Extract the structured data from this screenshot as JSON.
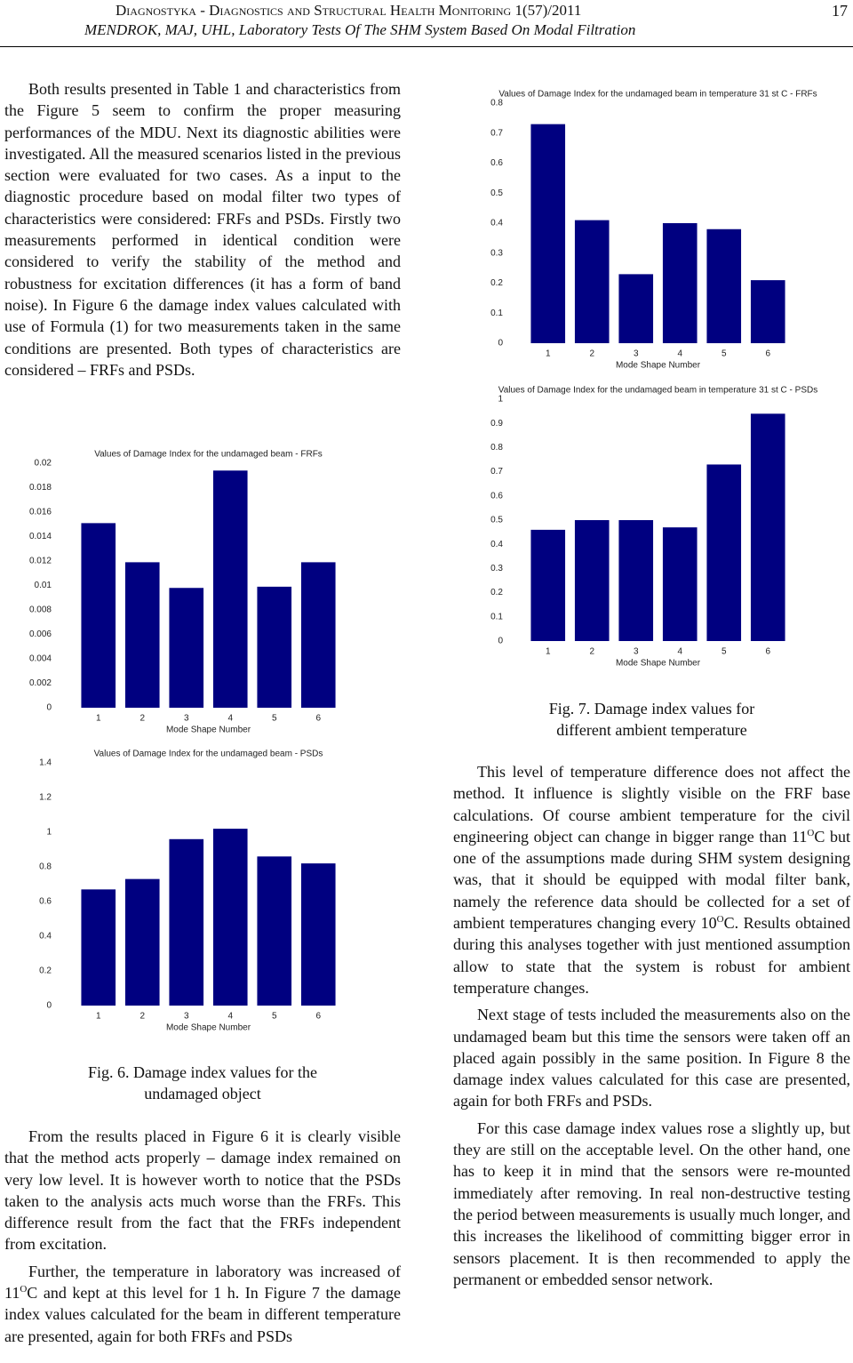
{
  "header": {
    "journal": "Diagnostyka - Diagnostics and Structural Health Monitoring 1(57)/2011",
    "page": "17",
    "authors": "MENDROK, MAJ, UHL, Laboratory Tests Of The SHM System Based On Modal Filtration"
  },
  "left": {
    "intro": [
      [
        {
          "text": "Both results presented in Table 1 and characteristics from the Figure 5 seem to confirm the proper measuring performances of the MDU. Next its diagnostic abilities were investigated. All the measured scenarios listed in the previous section were evaluated for two cases. As a input to the diagnostic procedure based on modal filter two types of characteristics were considered: FRFs and PSDs. Firstly two measurements performed in identical condition were considered to verify the stability of the method and robustness for excitation differences (it has a form of band noise). In Figure 6 the damage index values calculated with use of Formula (1) for two measurements taken in the same conditions are presented. Both types of characteristics are considered – FRFs and PSDs."
        }
      ]
    ],
    "caption": "Fig. 6. Damage index values for the undamaged object",
    "paragraphs": [
      [
        {
          "text": "From the results placed in Figure 6 it is clearly visible that the method acts properly – damage index remained on very low level. It is however worth to notice that the PSDs taken to the analysis acts much worse than the FRFs. This difference result from the fact that the FRFs independent from excitation."
        }
      ],
      [
        {
          "text": "Further, the temperature in laboratory was increased of 11"
        },
        {
          "text": "O",
          "sup": true
        },
        {
          "text": "C and kept at this level for 1 h. In Figure 7 the damage index values calculated for the beam in different temperature are presented, again for both FRFs and PSDs"
        }
      ]
    ]
  },
  "right": {
    "caption": "Fig. 7. Damage index values for different ambient temperature",
    "paragraphs": [
      [
        {
          "text": "This level of temperature difference does not affect the method. It influence is slightly visible on the FRF base calculations. Of course ambient temperature for the civil engineering object can change in bigger range than 11"
        },
        {
          "text": "O",
          "sup": true
        },
        {
          "text": "C but one of the assumptions made during SHM system designing was, that it should be equipped with modal filter bank, namely the reference data should be collected for a set of ambient temperatures changing every 10"
        },
        {
          "text": "O",
          "sup": true
        },
        {
          "text": "C. Results obtained during this analyses together with just mentioned assumption allow to state that the system is robust for ambient temperature changes."
        }
      ],
      [
        {
          "text": "Next stage of tests included the measurements also on the undamaged beam but this time the sensors were taken off an placed again possibly in the same position. In Figure 8 the damage index values calculated for this case are presented, again for both FRFs and PSDs."
        }
      ],
      [
        {
          "text": "For this case damage index values rose a slightly up, but they are still on the acceptable level. On the other hand, one has to keep it in mind that the sensors were re-mounted immediately after removing. In real non-destructive testing the period between measurements is usually much longer, and this increases the likelihood of committing bigger error in sensors placement. It is then recommended to apply the permanent or embedded sensor network."
        }
      ]
    ]
  },
  "chart_data": [
    {
      "type": "bar",
      "title": "Values of Damage Index for the undamaged beam - FRFs",
      "xlabel": "Mode Shape Number",
      "categories": [
        "1",
        "2",
        "3",
        "4",
        "5",
        "6"
      ],
      "values": [
        0.0151,
        0.0119,
        0.0098,
        0.0194,
        0.0099,
        0.0119
      ],
      "color": "#000080",
      "ylim": [
        0,
        0.02
      ],
      "yticks": [
        0,
        0.002,
        0.004,
        0.006,
        0.008,
        0.01,
        0.012,
        0.014,
        0.016,
        0.018,
        0.02
      ]
    },
    {
      "type": "bar",
      "title": "Values of Damage Index for the undamaged beam - PSDs",
      "xlabel": "Mode Shape Number",
      "categories": [
        "1",
        "2",
        "3",
        "4",
        "5",
        "6"
      ],
      "values": [
        0.67,
        0.73,
        0.96,
        1.02,
        0.86,
        0.82
      ],
      "color": "#000080",
      "ylim": [
        0,
        1.4
      ],
      "yticks": [
        0,
        0.2,
        0.4,
        0.6,
        0.8,
        1,
        1.2,
        1.4
      ]
    },
    {
      "type": "bar",
      "title": "Values of Damage Index for the undamaged beam in temperature 31 st C - FRFs",
      "xlabel": "Mode Shape Number",
      "categories": [
        "1",
        "2",
        "3",
        "4",
        "5",
        "6"
      ],
      "values": [
        0.73,
        0.41,
        0.23,
        0.4,
        0.38,
        0.21
      ],
      "color": "#000080",
      "ylim": [
        0,
        0.8
      ],
      "yticks": [
        0,
        0.1,
        0.2,
        0.3,
        0.4,
        0.5,
        0.6,
        0.7,
        0.8
      ]
    },
    {
      "type": "bar",
      "title": "Values of Damage Index for the undamaged beam in temperature 31 st C - PSDs",
      "xlabel": "Mode Shape Number",
      "categories": [
        "1",
        "2",
        "3",
        "4",
        "5",
        "6"
      ],
      "values": [
        0.46,
        0.5,
        0.5,
        0.47,
        0.73,
        0.94
      ],
      "color": "#000080",
      "ylim": [
        0,
        1
      ],
      "yticks": [
        0,
        0.1,
        0.2,
        0.3,
        0.4,
        0.5,
        0.6,
        0.7,
        0.8,
        0.9,
        1
      ]
    }
  ]
}
